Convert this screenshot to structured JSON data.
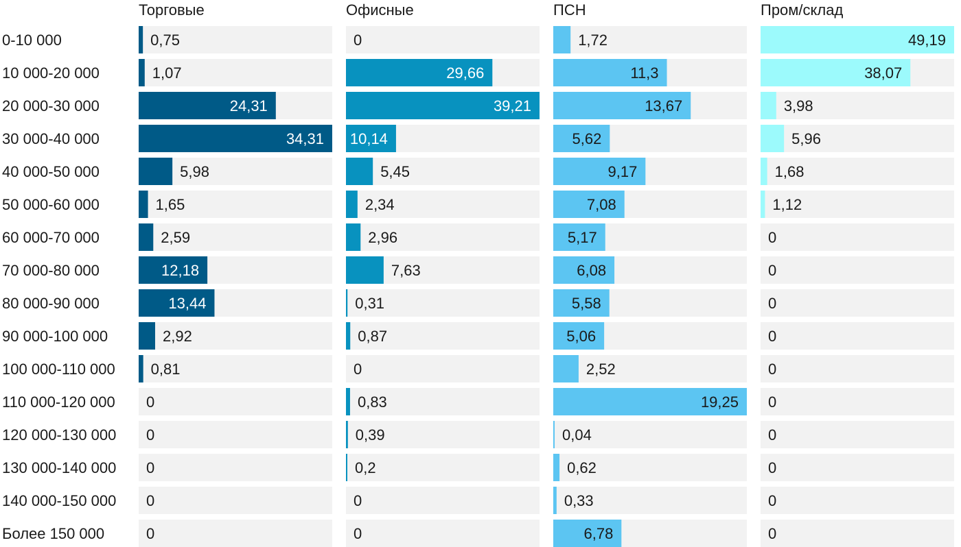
{
  "chart_data": {
    "type": "bar",
    "orientation": "horizontal",
    "categories": [
      "0-10 000",
      "10 000-20 000",
      "20 000-30 000",
      "30 000-40 000",
      "40 000-50 000",
      "50 000-60 000",
      "60 000-70 000",
      "70 000-80 000",
      "80 000-90 000",
      "90 000-100 000",
      "100 000-110 000",
      "110 000-120 000",
      "120 000-130 000",
      "130 000-140 000",
      "140 000-150 000",
      "Более 150 000"
    ],
    "series": [
      {
        "name": "Торговые",
        "color": "#005a87",
        "values": [
          0.75,
          1.07,
          24.31,
          34.31,
          5.98,
          1.65,
          2.59,
          12.18,
          13.44,
          2.92,
          0.81,
          0,
          0,
          0,
          0,
          0
        ],
        "labels": [
          "0,75",
          "1,07",
          "24,31",
          "34,31",
          "5,98",
          "1,65",
          "2,59",
          "12,18",
          "13,44",
          "2,92",
          "0,81",
          "0",
          "0",
          "0",
          "0",
          "0"
        ]
      },
      {
        "name": "Офисные",
        "color": "#0892bf",
        "values": [
          0,
          29.66,
          39.21,
          10.14,
          5.45,
          2.34,
          2.96,
          7.63,
          0.31,
          0.87,
          0,
          0.83,
          0.39,
          0.2,
          0,
          0
        ],
        "labels": [
          "0",
          "29,66",
          "39,21",
          "10,14",
          "5,45",
          "2,34",
          "2,96",
          "7,63",
          "0,31",
          "0,87",
          "0",
          "0,83",
          "0,39",
          "0,2",
          "0",
          "0"
        ]
      },
      {
        "name": "ПСН",
        "color": "#5cc5f2",
        "values": [
          1.72,
          11.3,
          13.67,
          5.62,
          9.17,
          7.08,
          5.17,
          6.08,
          5.58,
          5.06,
          2.52,
          19.25,
          0.04,
          0.62,
          0.33,
          6.78
        ],
        "labels": [
          "1,72",
          "11,3",
          "13,67",
          "5,62",
          "9,17",
          "7,08",
          "5,17",
          "6,08",
          "5,58",
          "5,06",
          "2,52",
          "19,25",
          "0,04",
          "0,62",
          "0,33",
          "6,78"
        ]
      },
      {
        "name": "Пром/склад",
        "color": "#9cfafc",
        "values": [
          49.19,
          38.07,
          3.98,
          5.96,
          1.68,
          1.12,
          0,
          0,
          0,
          0,
          0,
          0,
          0,
          0,
          0,
          0
        ],
        "labels": [
          "49,19",
          "38,07",
          "3,98",
          "5,96",
          "1,68",
          "1,12",
          "0",
          "0",
          "0",
          "0",
          "0",
          "0",
          "0",
          "0",
          "0",
          "0"
        ]
      }
    ],
    "track_color": "#f2f2f2",
    "grid": false,
    "legend": "none"
  }
}
